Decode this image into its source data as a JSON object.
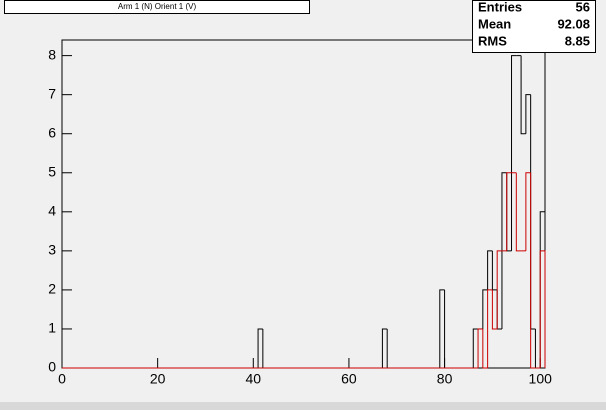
{
  "chart_data": {
    "type": "histogram",
    "title": "Arm 1 (N) Orient 1 (V)",
    "stats": {
      "labels": [
        "Entries",
        "Mean",
        "RMS"
      ],
      "values": [
        56,
        92.08,
        8.85
      ],
      "value_labels": [
        "56",
        "92.08",
        "8.85"
      ]
    },
    "bins": [
      0,
      41,
      42,
      67,
      68,
      79,
      80,
      86,
      87,
      88,
      89,
      90,
      91,
      92,
      93,
      94,
      95,
      96,
      97,
      98,
      99,
      100,
      101
    ],
    "series": [
      {
        "color": "#000000",
        "values": [
          0,
          1,
          0,
          1,
          0,
          2,
          0,
          1,
          1,
          2,
          3,
          2,
          1,
          5,
          3,
          8,
          8,
          6,
          7,
          1,
          0,
          4
        ]
      },
      {
        "color": "#cc0000",
        "values": [
          0,
          0,
          0,
          0,
          0,
          0,
          0,
          0,
          1,
          0,
          2,
          1,
          3,
          3,
          5,
          5,
          3,
          3,
          5,
          0,
          0,
          3
        ]
      }
    ],
    "xlim": [
      0,
      101
    ],
    "ylim": [
      0,
      8.4
    ],
    "xticks": [
      0,
      20,
      40,
      60,
      80,
      100
    ],
    "yticks": [
      0,
      1,
      2,
      3,
      4,
      5,
      6,
      7,
      8
    ]
  }
}
